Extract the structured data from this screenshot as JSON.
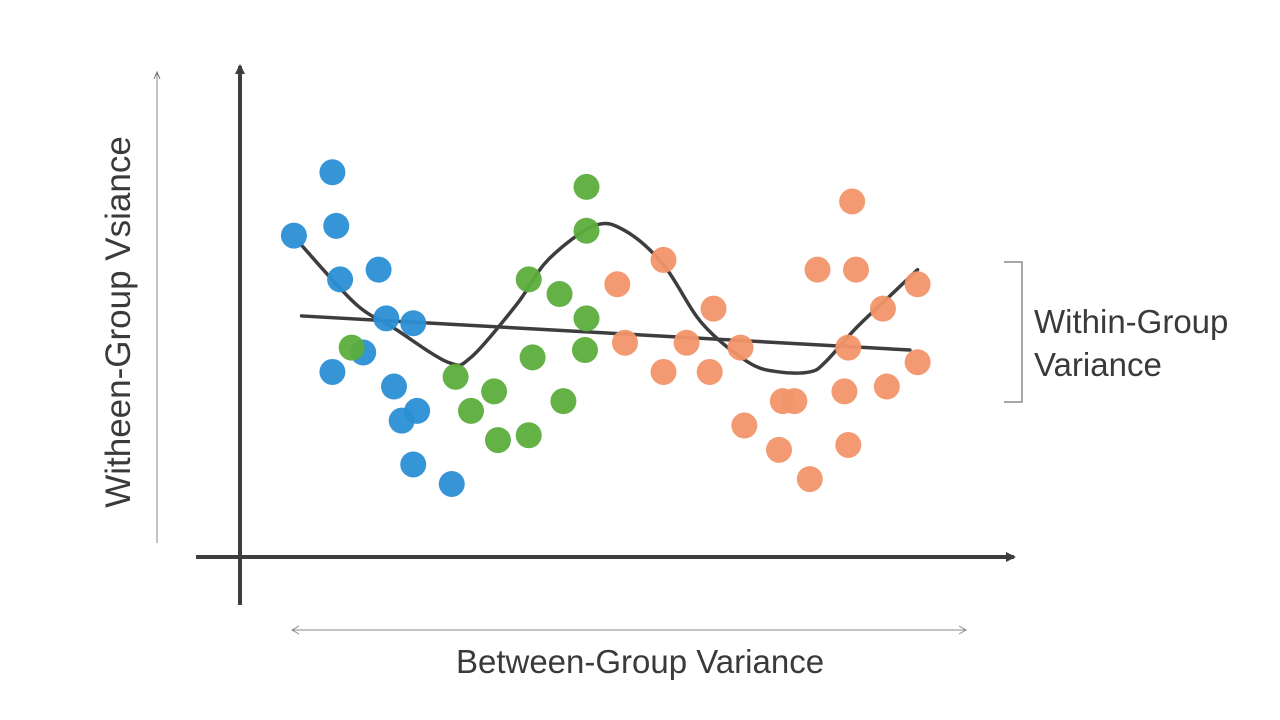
{
  "chart_data": {
    "type": "scatter",
    "title": "",
    "xlabel": "Between-Group Variance",
    "ylabel": "Witheen-Group Vsiance",
    "annotation": "Within-Group Variance",
    "annotation_lines": [
      "Within-Group",
      "Variance"
    ],
    "xlim": [
      0,
      100
    ],
    "ylim": [
      0,
      100
    ],
    "grid": false,
    "legend": "none",
    "series": [
      {
        "color": "#2a8fd4",
        "points": [
          [
            7,
            66
          ],
          [
            12,
            79
          ],
          [
            12.5,
            68
          ],
          [
            13,
            57
          ],
          [
            18,
            59
          ],
          [
            19,
            49
          ],
          [
            22.5,
            48
          ],
          [
            12,
            38
          ],
          [
            20,
            35
          ],
          [
            21,
            28
          ],
          [
            23,
            30
          ],
          [
            22.5,
            19
          ],
          [
            27.5,
            15
          ],
          [
            16,
            42
          ]
        ]
      },
      {
        "color": "#5cad3c",
        "points": [
          [
            14.5,
            43
          ],
          [
            28,
            37
          ],
          [
            30,
            30
          ],
          [
            33,
            34
          ],
          [
            33.5,
            24
          ],
          [
            37.5,
            25
          ],
          [
            38,
            41
          ],
          [
            37.5,
            57
          ],
          [
            41.5,
            54
          ],
          [
            42,
            32
          ],
          [
            45,
            49
          ],
          [
            44.8,
            42.5
          ],
          [
            45,
            67
          ],
          [
            45,
            76
          ]
        ]
      },
      {
        "color": "#f2956a",
        "points": [
          [
            49,
            56
          ],
          [
            50,
            44
          ],
          [
            55,
            38
          ],
          [
            55,
            61
          ],
          [
            58,
            44
          ],
          [
            61,
            38
          ],
          [
            61.5,
            51
          ],
          [
            65,
            43
          ],
          [
            65.5,
            27
          ],
          [
            70,
            22
          ],
          [
            70.5,
            32
          ],
          [
            72,
            32
          ],
          [
            74,
            16
          ],
          [
            75,
            59
          ],
          [
            78.5,
            34
          ],
          [
            79,
            43
          ],
          [
            79,
            23
          ],
          [
            79.5,
            73
          ],
          [
            80,
            59
          ],
          [
            83.5,
            51
          ],
          [
            84,
            35
          ],
          [
            88,
            56
          ],
          [
            88,
            40
          ]
        ]
      }
    ],
    "curves": [
      {
        "kind": "wave",
        "color": "#3d3d3d",
        "x": [
          8,
          15,
          20,
          27,
          30,
          36,
          40,
          46,
          50,
          55,
          60,
          66,
          70,
          74,
          76,
          80,
          84,
          88
        ],
        "y": [
          64,
          52,
          47,
          40,
          41,
          52,
          61,
          68,
          67,
          60,
          48,
          40,
          38,
          38,
          40,
          47,
          53,
          59
        ]
      },
      {
        "kind": "trend",
        "color": "#3d3d3d",
        "x": [
          8,
          87
        ],
        "y": [
          49.5,
          42.5
        ]
      }
    ]
  }
}
